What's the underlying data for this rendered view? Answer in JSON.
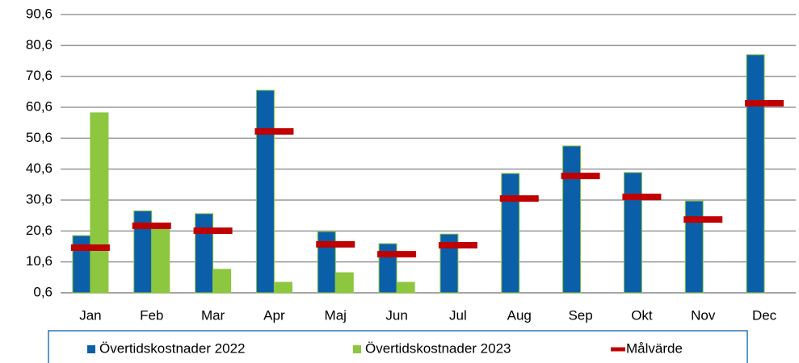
{
  "chart_data": {
    "type": "bar",
    "categories": [
      "Jan",
      "Feb",
      "Mar",
      "Apr",
      "Maj",
      "Jun",
      "Jul",
      "Aug",
      "Sep",
      "Okt",
      "Nov",
      "Dec"
    ],
    "series": [
      {
        "name": "Övertidskostnader 2022",
        "color": "#0b5fa8",
        "style": "bar",
        "values": [
          19.1,
          27.1,
          26.2,
          66.1,
          20.4,
          16.5,
          19.6,
          39.2,
          48.1,
          39.5,
          30.3,
          77.6
        ]
      },
      {
        "name": "Övertidskostnader 2023",
        "color": "#8dc63f",
        "style": "bar",
        "values": [
          58.8,
          22.3,
          8.2,
          4.0,
          7.1,
          4.0,
          null,
          null,
          null,
          null,
          null,
          null
        ]
      },
      {
        "name": "Målvärde",
        "color": "#c00000",
        "style": "marker",
        "values": [
          15.2,
          22.3,
          20.7,
          52.8,
          16.3,
          13.1,
          16.0,
          31.1,
          38.4,
          31.6,
          24.3,
          61.9
        ]
      }
    ],
    "ylim": [
      0.6,
      90.6
    ],
    "yticks": [
      {
        "value": 0.6,
        "label": "0,6"
      },
      {
        "value": 10.6,
        "label": "10,6"
      },
      {
        "value": 20.6,
        "label": "20,6"
      },
      {
        "value": 30.6,
        "label": "30,6"
      },
      {
        "value": 40.6,
        "label": "40,6"
      },
      {
        "value": 50.6,
        "label": "50,6"
      },
      {
        "value": 60.6,
        "label": "60,6"
      },
      {
        "value": 70.6,
        "label": "70,6"
      },
      {
        "value": 80.6,
        "label": "80,6"
      },
      {
        "value": 90.6,
        "label": "90,6"
      }
    ],
    "grid": true,
    "legend": "bottom"
  }
}
